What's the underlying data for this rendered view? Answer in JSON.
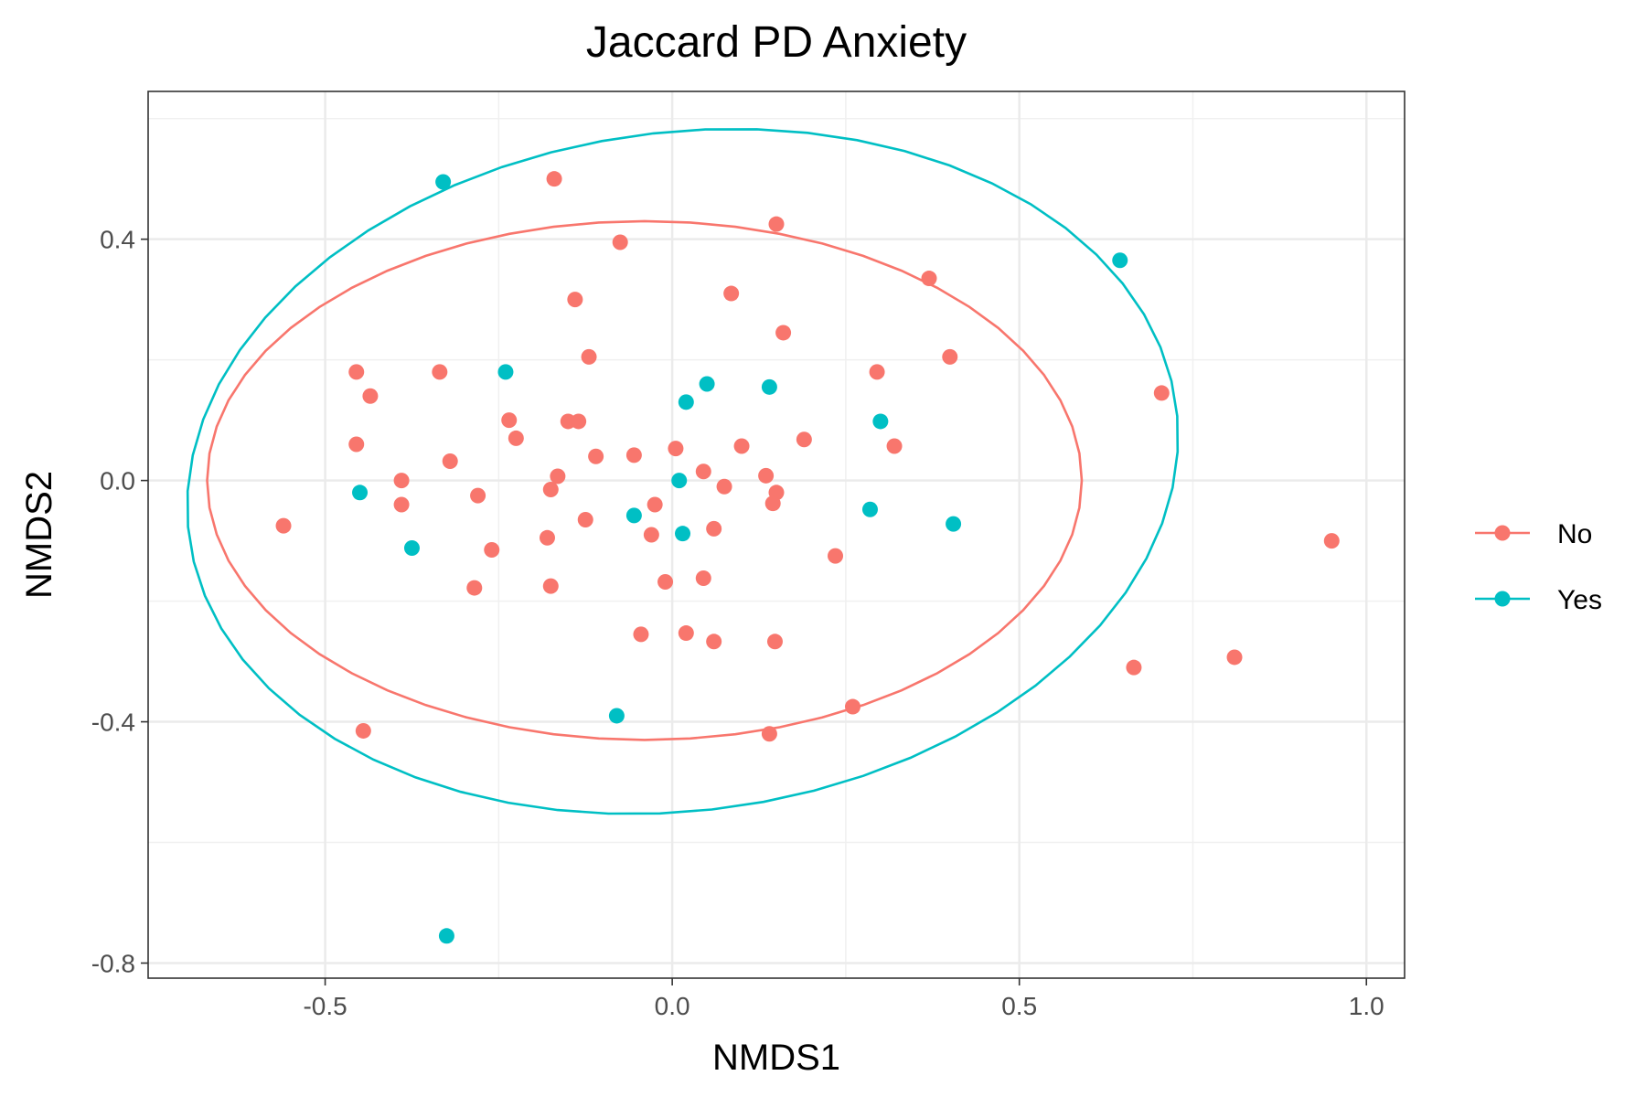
{
  "chart_data": {
    "type": "scatter",
    "title": "Jaccard PD Anxiety",
    "xlabel": "NMDS1",
    "ylabel": "NMDS2",
    "xlim": [
      -0.755,
      1.055
    ],
    "ylim": [
      -0.825,
      0.645
    ],
    "x_ticks": [
      -0.5,
      0.0,
      0.5,
      1.0
    ],
    "x_tick_labels": [
      "-0.5",
      "0.0",
      "0.5",
      "1.0"
    ],
    "y_ticks": [
      -0.8,
      -0.4,
      0.0,
      0.4
    ],
    "y_tick_labels": [
      "-0.8",
      "-0.4",
      "0.0",
      "0.4"
    ],
    "grid": true,
    "legend_position": "right",
    "series": [
      {
        "name": "No",
        "color": "#F8766D",
        "points": [
          [
            -0.17,
            0.5
          ],
          [
            0.15,
            0.425
          ],
          [
            -0.075,
            0.395
          ],
          [
            0.37,
            0.335
          ],
          [
            0.085,
            0.31
          ],
          [
            -0.14,
            0.3
          ],
          [
            0.16,
            0.245
          ],
          [
            -0.12,
            0.205
          ],
          [
            0.4,
            0.205
          ],
          [
            -0.455,
            0.18
          ],
          [
            -0.335,
            0.18
          ],
          [
            0.295,
            0.18
          ],
          [
            -0.435,
            0.14
          ],
          [
            0.705,
            0.145
          ],
          [
            -0.235,
            0.1
          ],
          [
            -0.15,
            0.098
          ],
          [
            -0.135,
            0.098
          ],
          [
            -0.225,
            0.07
          ],
          [
            0.19,
            0.068
          ],
          [
            -0.455,
            0.06
          ],
          [
            0.1,
            0.057
          ],
          [
            0.32,
            0.057
          ],
          [
            0.005,
            0.053
          ],
          [
            -0.055,
            0.042
          ],
          [
            -0.11,
            0.04
          ],
          [
            -0.32,
            0.032
          ],
          [
            0.045,
            0.015
          ],
          [
            0.135,
            0.008
          ],
          [
            -0.165,
            0.007
          ],
          [
            -0.39,
            0.0
          ],
          [
            0.075,
            -0.01
          ],
          [
            -0.175,
            -0.015
          ],
          [
            0.15,
            -0.02
          ],
          [
            -0.28,
            -0.025
          ],
          [
            -0.025,
            -0.04
          ],
          [
            0.145,
            -0.038
          ],
          [
            -0.39,
            -0.04
          ],
          [
            -0.125,
            -0.065
          ],
          [
            -0.56,
            -0.075
          ],
          [
            0.06,
            -0.08
          ],
          [
            -0.03,
            -0.09
          ],
          [
            -0.18,
            -0.095
          ],
          [
            -0.26,
            -0.115
          ],
          [
            0.235,
            -0.125
          ],
          [
            0.95,
            -0.1
          ],
          [
            -0.01,
            -0.168
          ],
          [
            0.045,
            -0.162
          ],
          [
            -0.285,
            -0.178
          ],
          [
            -0.175,
            -0.175
          ],
          [
            -0.045,
            -0.255
          ],
          [
            0.02,
            -0.253
          ],
          [
            0.06,
            -0.267
          ],
          [
            0.148,
            -0.267
          ],
          [
            0.81,
            -0.293
          ],
          [
            0.665,
            -0.31
          ],
          [
            0.26,
            -0.375
          ],
          [
            -0.445,
            -0.415
          ],
          [
            0.14,
            -0.42
          ]
        ]
      },
      {
        "name": "Yes",
        "color": "#00BFC4",
        "points": [
          [
            -0.33,
            0.495
          ],
          [
            0.645,
            0.365
          ],
          [
            -0.24,
            0.18
          ],
          [
            0.05,
            0.16
          ],
          [
            0.14,
            0.155
          ],
          [
            0.02,
            0.13
          ],
          [
            0.3,
            0.098
          ],
          [
            0.01,
            0.0
          ],
          [
            -0.45,
            -0.02
          ],
          [
            0.285,
            -0.048
          ],
          [
            -0.055,
            -0.058
          ],
          [
            0.405,
            -0.072
          ],
          [
            0.015,
            -0.088
          ],
          [
            -0.375,
            -0.112
          ],
          [
            -0.08,
            -0.39
          ],
          [
            -0.325,
            -0.755
          ]
        ]
      }
    ],
    "ellipses": [
      {
        "series": "No",
        "color": "#F8766D",
        "cx": -0.04,
        "cy": 0.0,
        "rx": 0.63,
        "ry": 0.43,
        "angle_deg": 0
      },
      {
        "series": "Yes",
        "color": "#00BFC4",
        "cx": 0.015,
        "cy": 0.015,
        "rx": 0.72,
        "ry": 0.56,
        "angle_deg": 12
      }
    ]
  }
}
